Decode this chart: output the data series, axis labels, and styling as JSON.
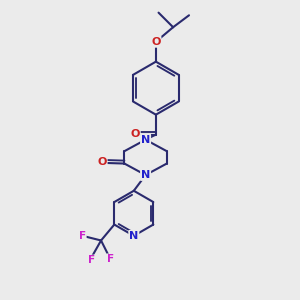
{
  "background_color": "#ebebeb",
  "bond_color": "#2a2a6e",
  "bond_width": 1.5,
  "atom_colors": {
    "N": "#2222cc",
    "O": "#cc2222",
    "F": "#cc22cc"
  },
  "figsize": [
    3.0,
    3.0
  ],
  "dpi": 100
}
